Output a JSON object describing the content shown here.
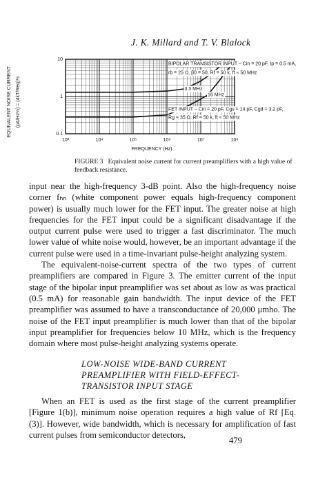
{
  "header": {
    "authors": "J. K. Millard and T. V. Blalock"
  },
  "chart_data": {
    "type": "line",
    "x_label": "FREQUENCY (Hz)",
    "y_label": "EQUIVALENT NOISE CURRENT",
    "y_label_2": "(pA/Hz½) = (4kT/Req)½",
    "xscale": "log",
    "yscale": "log",
    "grid": true,
    "xlim": [
      1000,
      100000000
    ],
    "ylim": [
      0.1,
      10
    ],
    "xticks": [
      {
        "value": 1000,
        "label": "10³"
      },
      {
        "value": 10000,
        "label": "10⁴"
      },
      {
        "value": 100000,
        "label": "10⁵"
      },
      {
        "value": 1000000,
        "label": "10⁶"
      },
      {
        "value": 10000000,
        "label": "10⁷"
      },
      {
        "value": 100000000,
        "label": "10⁸"
      }
    ],
    "yticks": [
      0.1,
      1,
      10
    ],
    "x": [
      1000,
      10000,
      100000,
      1000000,
      3300000,
      10000000,
      16000000,
      30000000,
      60000000,
      100000000
    ],
    "series": [
      {
        "name": "BIPOLAR TRANSISTOR INPUT",
        "color": "#111111",
        "values": [
          1.3,
          1.3,
          1.3,
          1.4,
          1.6,
          2.6,
          3.5,
          5.5,
          9,
          null
        ]
      },
      {
        "name": "FET INPUT",
        "color": "#111111",
        "values": [
          0.28,
          0.28,
          0.28,
          0.32,
          0.5,
          0.85,
          1.1,
          2.2,
          5,
          9
        ]
      }
    ],
    "annotations": [
      {
        "text": "BIPOLAR TRANSISTOR INPUT – Cin = 20 pF, Ip = 0.5 mA,",
        "x": 1100000,
        "y": 7.5
      },
      {
        "text": "rb = 25 Ω, β0 = 50, Rf = 50 k, ft ≈ 50 MHz",
        "x": 1100000,
        "y": 4.3
      },
      {
        "text": "3.3 MHz",
        "x": 3300000,
        "y": 1.6
      },
      {
        "text": "16 MHz",
        "x": 16000000,
        "y": 1.1
      },
      {
        "text": "FET INPUT – Cin = 20 pF, Cgs = 14 pF, Cgd = 3.2 pF,",
        "x": 1100000,
        "y": 0.45
      },
      {
        "text": "Rg = 35 Ω, Rf = 50 k, ft ≈ 50 MHz",
        "x": 1100000,
        "y": 0.27
      }
    ]
  },
  "caption": {
    "label": "FIGURE 3",
    "text": "Equivalent noise current for current preamplifiers with a high value of feedback resistance."
  },
  "paragraphs": [
    "input near the high-frequency 3-dB point. Also the high-frequency noise corner fₕₙ (white component power equals high-frequency component power) is usually much lower for the FET input. The greater noise at high frequencies for the FET input could be a significant disadvantage if the output current pulse were used to trigger a fast discriminator. The much lower value of white noise would, however, be an important advantage if the current pulse were used in a time-invariant pulse-height analyzing system.",
    "The equivalent-noise-current spectra of the two types of current preamplifiers are compared in Figure 3. The emitter current of the input stage of the bipolar input preamplifier was set about as low as was practical (0.5 mA) for reasonable gain bandwidth. The input device of the FET preamplifier was assumed to have a transconductance of 20,000 μmho. The noise of the FET input preamplifier is much lower than that of the bipolar input preamplifier for frequencies below 10 MHz, which is the frequency domain where most pulse-height analyzing systems operate."
  ],
  "section": {
    "title_lines": [
      "LOW-NOISE WIDE-BAND CURRENT",
      "PREAMPLIFIER WITH FIELD-EFFECT-",
      "TRANSISTOR INPUT STAGE"
    ],
    "paragraph": "When an FET is used as the first stage of the current preamplifier [Figure 1(b)], minimum noise operation requires a high value of Rf [Eq. (3)]. However, wide bandwidth, which is necessary for amplification of fast current pulses from semiconductor detectors,"
  },
  "page_number": "479"
}
